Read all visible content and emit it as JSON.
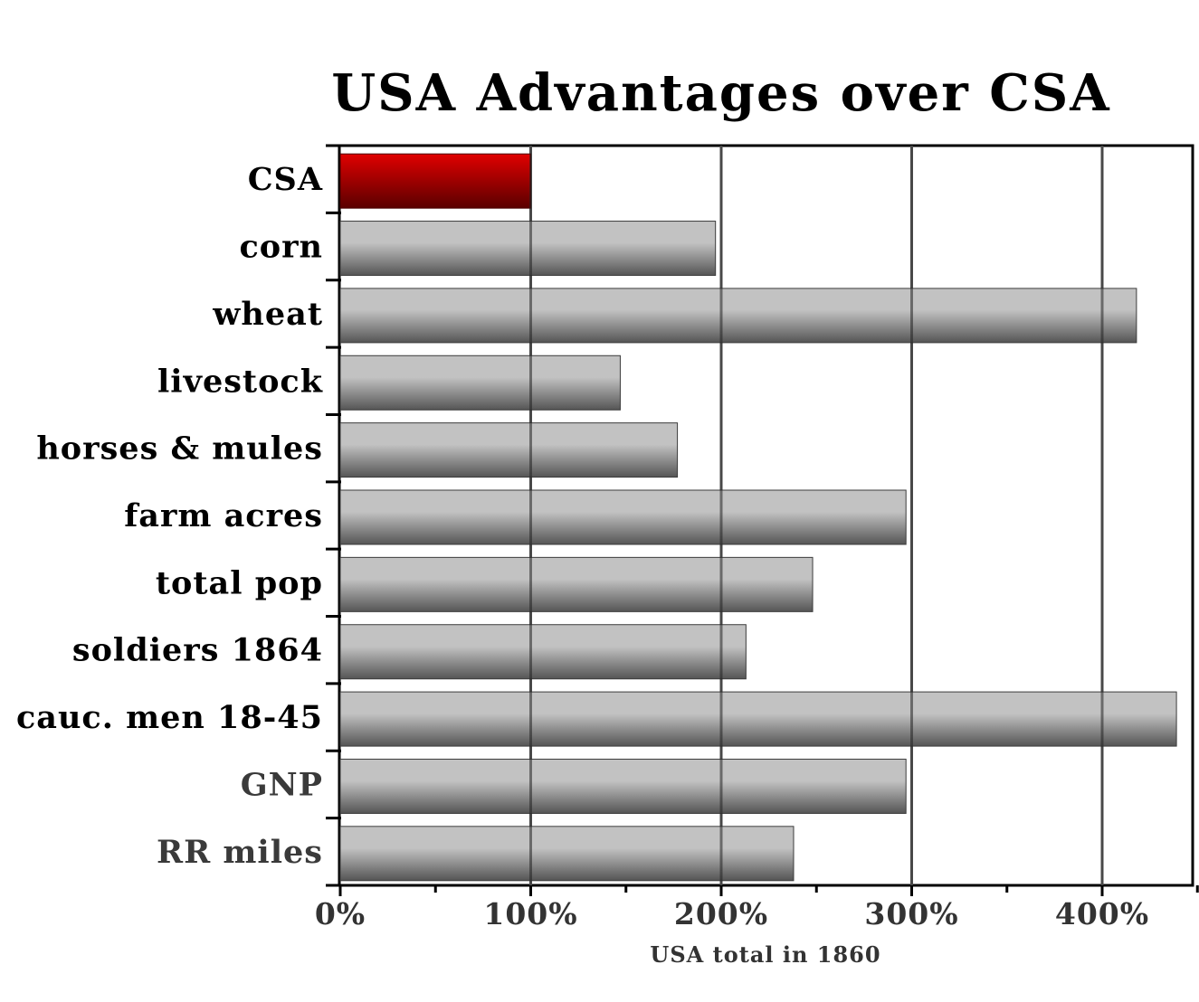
{
  "chart_data": {
    "type": "bar",
    "orientation": "horizontal",
    "title": "USA Advantages over CSA",
    "xlabel": "USA total in 1860",
    "ylabel": "",
    "categories": [
      "CSA",
      "corn",
      "wheat",
      "livestock",
      "horses & mules",
      "farm acres",
      "total pop",
      "soldiers 1864",
      "cauc. men 18-45",
      "GNP",
      "RR miles"
    ],
    "values": [
      100,
      197,
      418,
      147,
      177,
      297,
      248,
      213,
      439,
      297,
      238
    ],
    "unit": "%",
    "xlim": [
      0,
      450
    ],
    "xticks": [
      0,
      100,
      200,
      300,
      400
    ],
    "xtick_labels": [
      "0%",
      "100%",
      "200%",
      "300%",
      "400%"
    ],
    "grid": "vertical lines at major ticks",
    "colors": {
      "highlight_top": "#e00000",
      "highlight_bottom": "#5a0000",
      "bar_top": "#c2c2c2",
      "bar_bottom": "#555555",
      "label_dark": "#000000",
      "label_muted": "#3a3a3a",
      "grid": "#777777"
    },
    "highlight_category": "CSA",
    "muted_label_categories": [
      "GNP",
      "RR miles"
    ]
  }
}
